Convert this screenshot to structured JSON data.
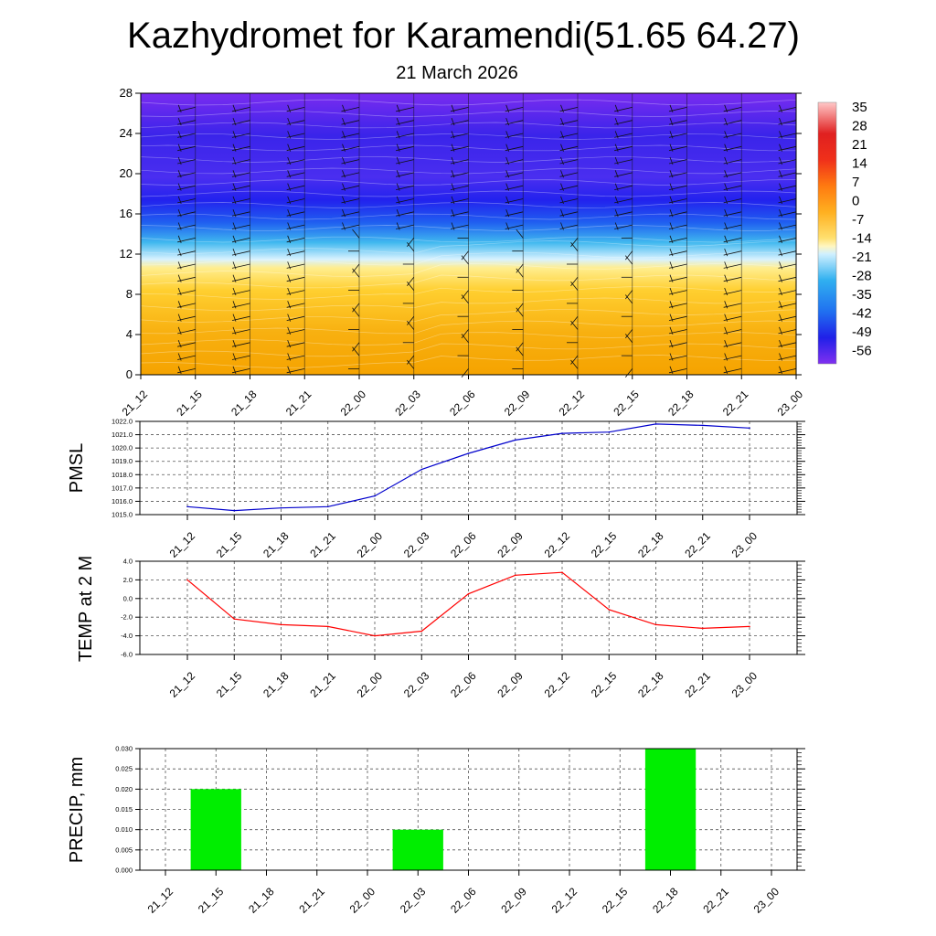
{
  "title": "Kazhydromet for Karamendi(51.65 64.27)",
  "subtitle": "21 March 2026",
  "colors": {
    "pmsl_line": "#0000cc",
    "temp_line": "#ff0000",
    "precip_bar": "#00ee00"
  },
  "chart_data": [
    {
      "name": "cross-section",
      "type": "heatmap",
      "categories": [
        "21_12",
        "21_15",
        "21_18",
        "21_21",
        "22_00",
        "22_03",
        "22_06",
        "22_09",
        "22_12",
        "22_15",
        "22_18",
        "22_21",
        "23_00"
      ],
      "ylim": [
        0,
        28
      ],
      "yticks": [
        0,
        4,
        8,
        12,
        16,
        20,
        24,
        28
      ],
      "colorbar_labels": [
        "35",
        "28",
        "21",
        "14",
        "7",
        "0",
        "-7",
        "-14",
        "-21",
        "-28",
        "-35",
        "-42",
        "-49",
        "-56"
      ],
      "description_levels": "temperature field with wind barbs by level"
    },
    {
      "name": "pmsl",
      "type": "line",
      "ylabel": "PMSL",
      "categories": [
        "21_12",
        "21_15",
        "21_18",
        "21_21",
        "22_00",
        "22_03",
        "22_06",
        "22_09",
        "22_12",
        "22_15",
        "22_18",
        "22_21",
        "23_00"
      ],
      "values": [
        1015.6,
        1015.3,
        1015.5,
        1015.6,
        1016.4,
        1018.4,
        1019.6,
        1020.6,
        1021.1,
        1021.2,
        1021.8,
        1021.7,
        1021.5
      ],
      "ylim": [
        1015.0,
        1022.0
      ],
      "yticks": [
        "1015.0",
        "1016.0",
        "1017.0",
        "1018.0",
        "1019.0",
        "1020.0",
        "1021.0",
        "1022.0"
      ]
    },
    {
      "name": "temp",
      "type": "line",
      "ylabel": "TEMP at 2 M",
      "categories": [
        "21_12",
        "21_15",
        "21_18",
        "21_21",
        "22_00",
        "22_03",
        "22_06",
        "22_09",
        "22_12",
        "22_15",
        "22_18",
        "22_21",
        "23_00"
      ],
      "values": [
        2.0,
        -2.2,
        -2.8,
        -3.0,
        -4.0,
        -3.5,
        0.5,
        2.5,
        2.8,
        -1.2,
        -2.8,
        -3.2,
        -3.0
      ],
      "ylim": [
        -6.0,
        4.0
      ],
      "yticks": [
        "-6.0",
        "-4.0",
        "-2.0",
        "0.0",
        "2.0",
        "4.0"
      ]
    },
    {
      "name": "precip",
      "type": "bar",
      "ylabel": "PRECIP, mm",
      "categories": [
        "21_12",
        "21_15",
        "21_18",
        "21_21",
        "22_00",
        "22_03",
        "22_06",
        "22_09",
        "22_12",
        "22_15",
        "22_18",
        "22_21",
        "23_00"
      ],
      "values": [
        0,
        0.02,
        0,
        0,
        0,
        0.01,
        0,
        0,
        0,
        0,
        0.03,
        0,
        0
      ],
      "ylim": [
        0,
        0.03
      ],
      "yticks": [
        "0.000",
        "0.005",
        "0.010",
        "0.015",
        "0.020",
        "0.025",
        "0.030"
      ]
    }
  ]
}
